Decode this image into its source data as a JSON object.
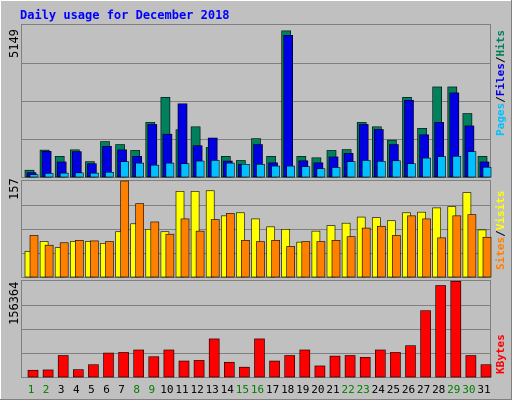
{
  "chart_data": [
    {
      "type": "bar",
      "title": "Daily usage for December 2018",
      "panel": "hits-files-pages",
      "ylabel_max": "5149",
      "ylim": [
        0,
        5149
      ],
      "categories": [
        "1",
        "2",
        "3",
        "4",
        "5",
        "6",
        "7",
        "8",
        "9",
        "10",
        "11",
        "12",
        "13",
        "14",
        "15",
        "16",
        "17",
        "18",
        "19",
        "20",
        "21",
        "22",
        "23",
        "24",
        "25",
        "26",
        "27",
        "28",
        "29",
        "30",
        "31"
      ],
      "weekend_days": [
        "1",
        "2",
        "8",
        "9",
        "15",
        "16",
        "22",
        "23",
        "29",
        "30"
      ],
      "series": [
        {
          "name": "Hits",
          "color": "#00805c",
          "values": [
            230,
            910,
            700,
            920,
            520,
            1200,
            1100,
            900,
            1850,
            2700,
            1600,
            1700,
            1000,
            700,
            560,
            1300,
            700,
            4950,
            700,
            650,
            900,
            930,
            1850,
            1700,
            1250,
            2700,
            1650,
            3050,
            3050,
            2150,
            700
          ]
        },
        {
          "name": "Files",
          "color": "#0000e0",
          "values": [
            150,
            870,
            510,
            860,
            450,
            1040,
            920,
            700,
            1780,
            1450,
            2480,
            1060,
            1320,
            540,
            430,
            1100,
            480,
            4800,
            550,
            480,
            680,
            800,
            1780,
            1610,
            1100,
            2600,
            1430,
            1850,
            2850,
            1730,
            510
          ]
        },
        {
          "name": "Pages",
          "color": "#00c0ff",
          "values": [
            80,
            120,
            130,
            140,
            130,
            160,
            520,
            470,
            400,
            470,
            450,
            540,
            560,
            470,
            430,
            430,
            370,
            370,
            350,
            280,
            320,
            520,
            560,
            530,
            550,
            450,
            640,
            690,
            700,
            860,
            330
          ]
        }
      ],
      "legend": [
        "Pages",
        "/",
        "Files",
        "/",
        "Hits"
      ],
      "legend_colors": [
        "#00c0ff",
        "#000000",
        "#0000e0",
        "#000000",
        "#00805c"
      ]
    },
    {
      "type": "bar",
      "panel": "visits-sites",
      "ylabel_max": "157",
      "ylim": [
        0,
        157
      ],
      "categories": [
        "1",
        "2",
        "3",
        "4",
        "5",
        "6",
        "7",
        "8",
        "9",
        "10",
        "11",
        "12",
        "13",
        "14",
        "15",
        "16",
        "17",
        "18",
        "19",
        "20",
        "21",
        "22",
        "23",
        "24",
        "25",
        "26",
        "27",
        "28",
        "29",
        "30",
        "31"
      ],
      "series": [
        {
          "name": "Visits",
          "color": "#ffff00",
          "values": [
            42,
            58,
            48,
            58,
            58,
            55,
            74,
            87,
            78,
            74,
            140,
            140,
            141,
            100,
            105,
            95,
            82,
            78,
            57,
            75,
            84,
            88,
            98,
            97,
            92,
            105,
            106,
            113,
            115,
            138,
            77
          ]
        },
        {
          "name": "Sites",
          "color": "#ff8000",
          "values": [
            68,
            52,
            56,
            60,
            59,
            58,
            157,
            120,
            90,
            70,
            95,
            75,
            94,
            104,
            60,
            58,
            60,
            50,
            58,
            58,
            60,
            66,
            80,
            83,
            68,
            100,
            95,
            64,
            100,
            102,
            65
          ]
        }
      ],
      "legend": [
        "Sites",
        "/",
        "Visits"
      ],
      "legend_colors": [
        "#ff8000",
        "#000000",
        "#ffff00"
      ]
    },
    {
      "type": "bar",
      "panel": "kbytes",
      "ylabel_max": "156364",
      "ylim": [
        0,
        156364
      ],
      "categories": [
        "1",
        "2",
        "3",
        "4",
        "5",
        "6",
        "7",
        "8",
        "9",
        "10",
        "11",
        "12",
        "13",
        "14",
        "15",
        "16",
        "17",
        "18",
        "19",
        "20",
        "21",
        "22",
        "23",
        "24",
        "25",
        "26",
        "27",
        "28",
        "29",
        "30",
        "31"
      ],
      "series": [
        {
          "name": "KBytes",
          "color": "#ff0000",
          "values": [
            11000,
            11500,
            35000,
            12000,
            20000,
            39000,
            40000,
            44000,
            33000,
            44000,
            26000,
            27000,
            62000,
            24000,
            16000,
            62000,
            26000,
            35000,
            44000,
            18000,
            34000,
            35000,
            32000,
            44000,
            40000,
            51000,
            108000,
            149000,
            156000,
            35000,
            20000
          ]
        }
      ],
      "legend": [
        "KBytes"
      ],
      "legend_colors": [
        "#ff0000"
      ]
    }
  ]
}
